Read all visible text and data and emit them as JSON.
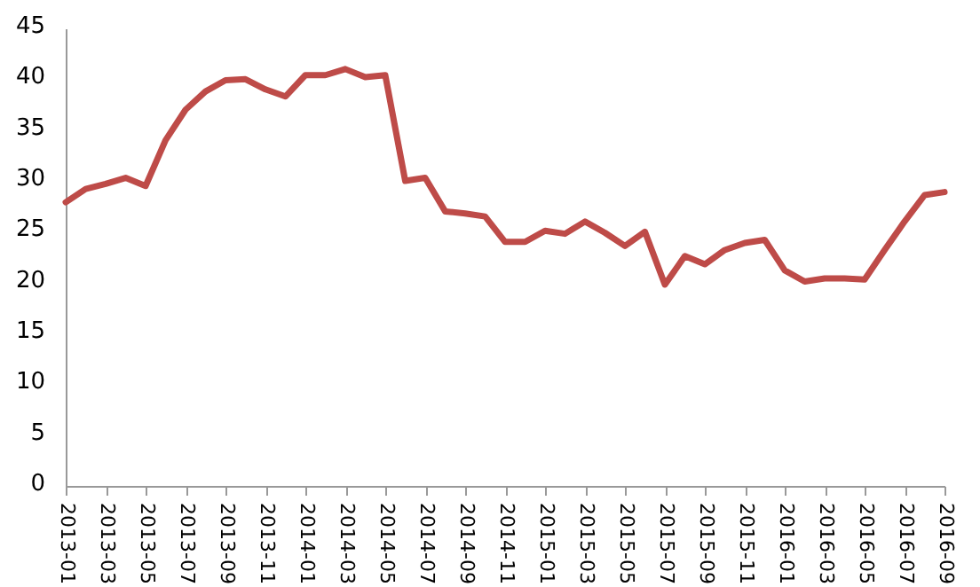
{
  "chart_data": {
    "type": "line",
    "categories": [
      "2013-01",
      null,
      "2013-03",
      null,
      "2013-05",
      null,
      "2013-07",
      null,
      "2013-09",
      null,
      "2013-11",
      null,
      "2014-01",
      null,
      "2014-03",
      null,
      "2014-05",
      null,
      "2014-07",
      null,
      "2014-09",
      null,
      "2014-11",
      null,
      "2015-01",
      null,
      "2015-03",
      null,
      "2015-05",
      null,
      "2015-07",
      null,
      "2015-09",
      null,
      "2015-11",
      null,
      "2016-01",
      null,
      "2016-03",
      null,
      "2016-05",
      null,
      "2016-07",
      null,
      "2016-09"
    ],
    "series": [
      {
        "color": "#be4b48",
        "values": [
          27.9,
          29.2,
          29.7,
          30.3,
          29.5,
          34.0,
          37.0,
          38.8,
          39.9,
          40.0,
          39.0,
          38.3,
          40.4,
          40.4,
          41.0,
          40.2,
          40.4,
          30.0,
          30.3,
          27.0,
          26.8,
          26.5,
          24.0,
          24.0,
          25.1,
          24.8,
          26.0,
          24.9,
          23.6,
          25.0,
          19.8,
          22.6,
          21.8,
          23.2,
          23.9,
          24.2,
          21.2,
          20.1,
          20.4,
          20.4,
          20.3,
          23.2,
          26.0,
          28.6,
          28.9
        ]
      }
    ],
    "ylim": [
      0,
      45
    ],
    "yticks": [
      0,
      5,
      10,
      15,
      20,
      25,
      30,
      35,
      40,
      45
    ],
    "grid": false,
    "marker": "none",
    "line_style": "solid"
  }
}
